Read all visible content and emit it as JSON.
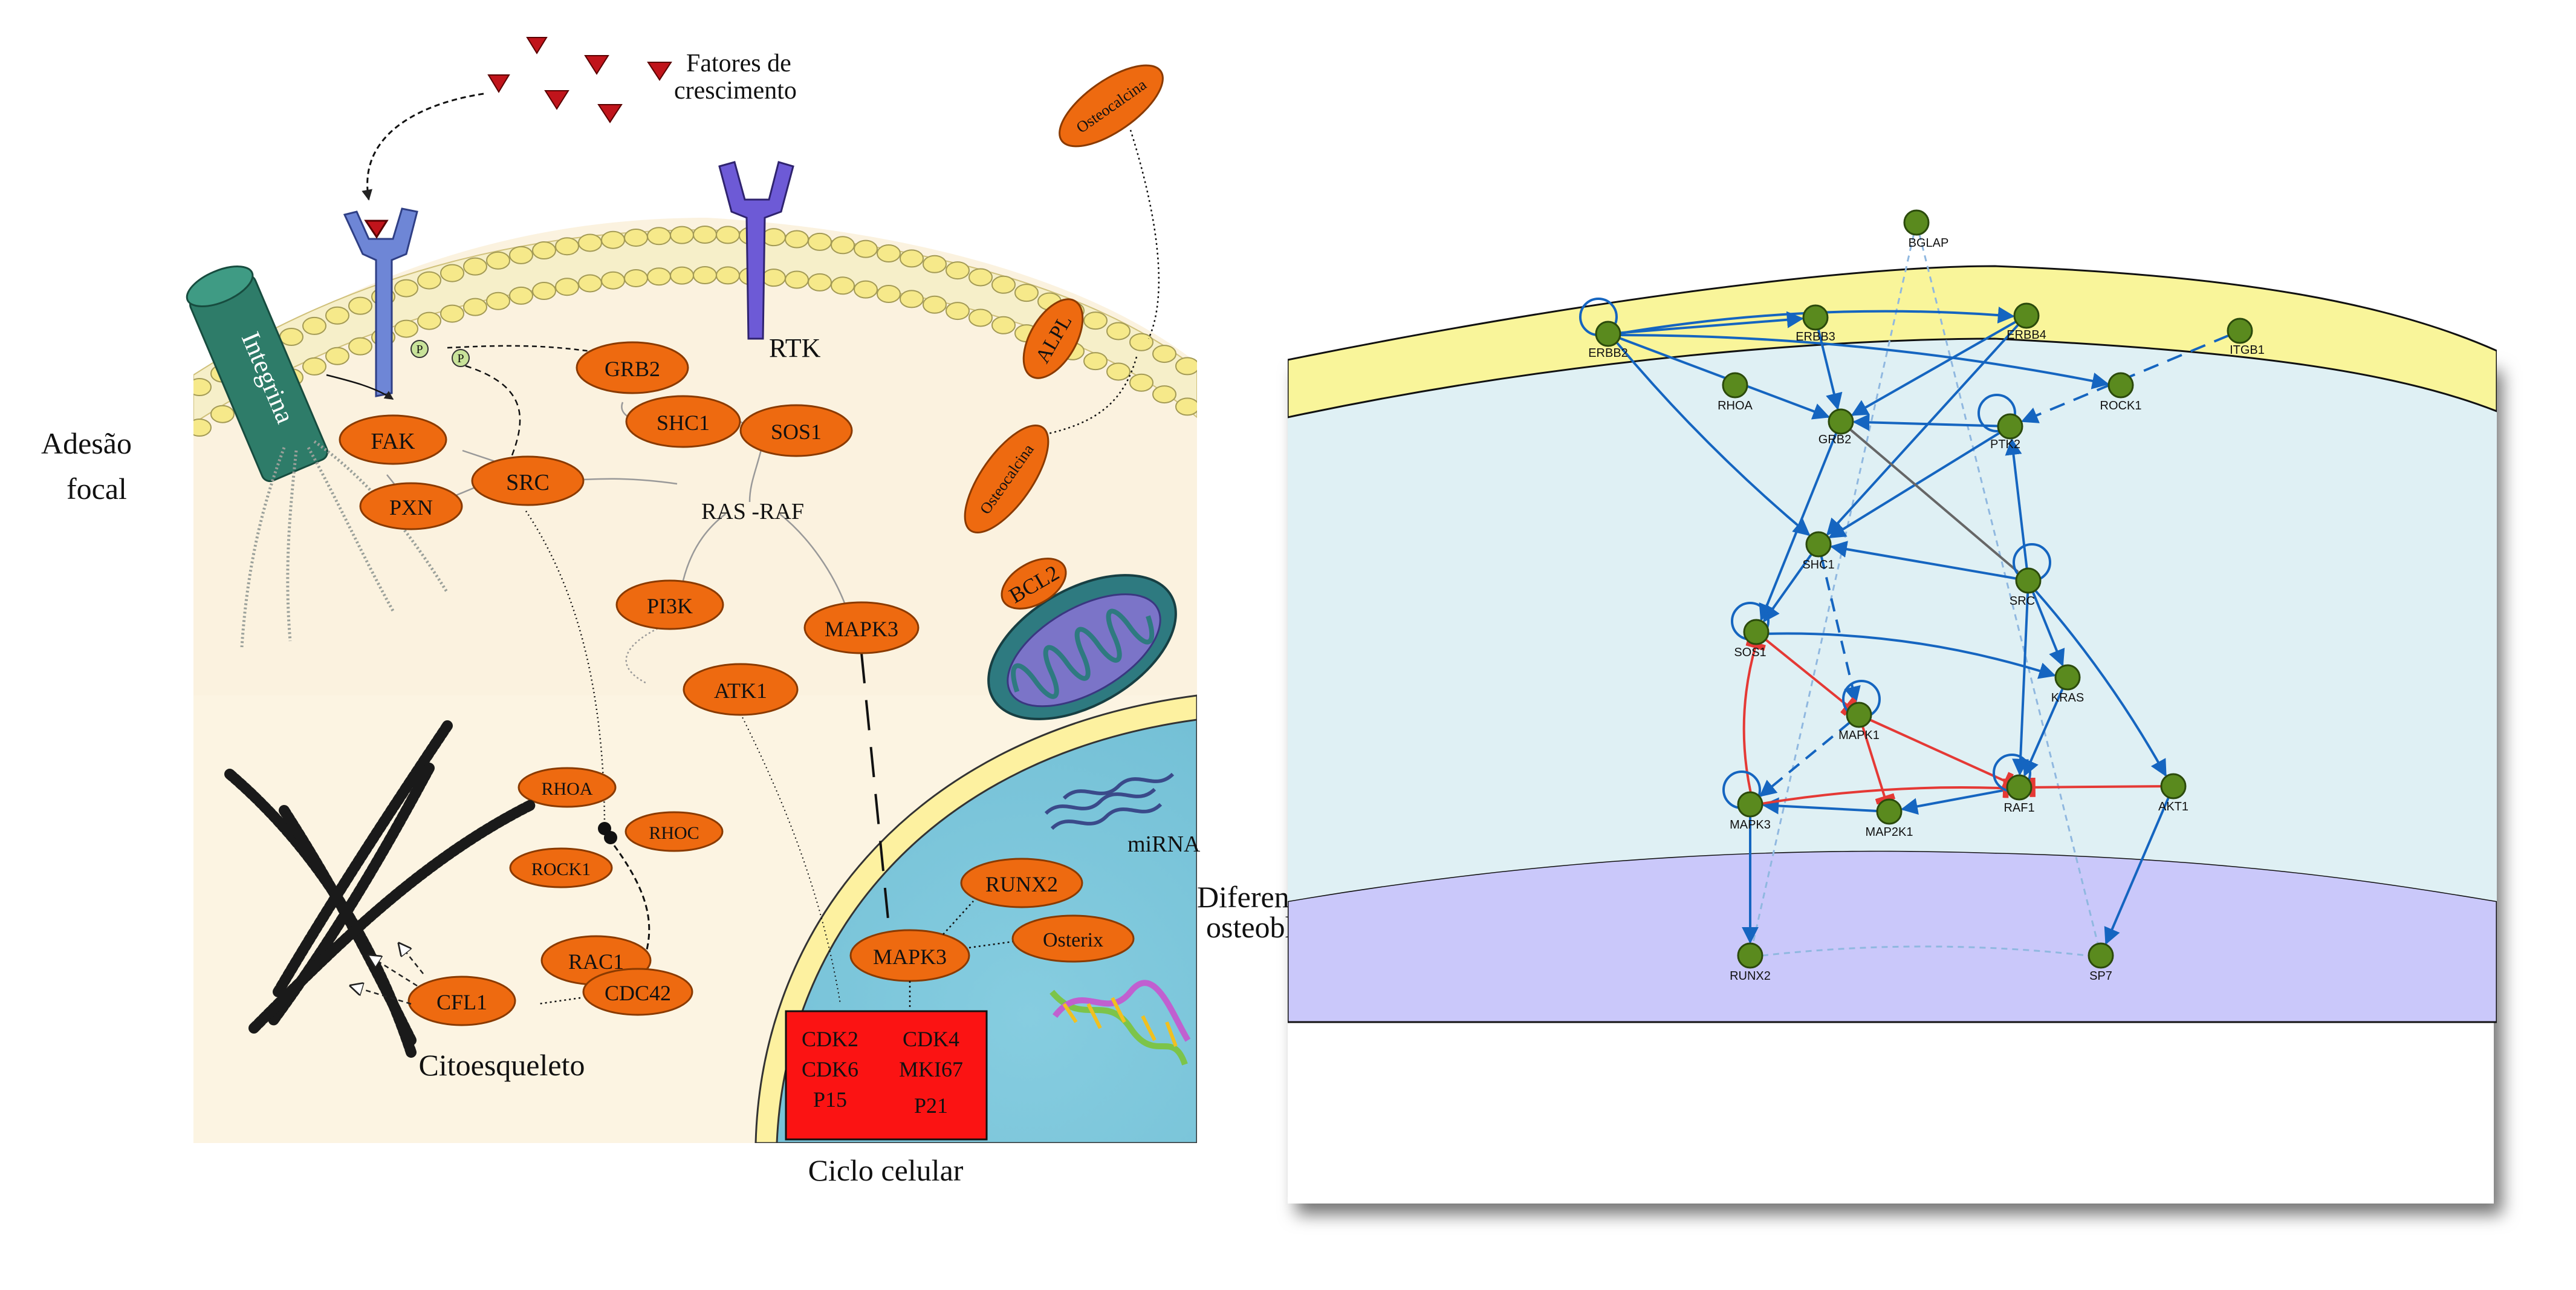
{
  "left_panel": {
    "growth_factors_label": [
      "Fatores de",
      "crescimento"
    ],
    "integrin": "Integrina",
    "rtk": "RTK",
    "focal_adhesion": [
      "Adesão",
      "focal"
    ],
    "cytoskeleton": "Citoesqueleto",
    "osteoblast_diff": [
      "Diferenciação",
      "osteoblástica"
    ],
    "cell_cycle": "Ciclo celular",
    "mirna": "miRNA",
    "ras_raf": "RAS -RAF",
    "phospho": [
      "P",
      "P"
    ],
    "nodes": [
      "FAK",
      "PXN",
      "SRC",
      "GRB2",
      "SHC1",
      "SOS1",
      "PI3K",
      "ATK1",
      "MAPK3",
      "RHOA",
      "RHOC",
      "ROCK1",
      "RAC1",
      "CDC42",
      "CFL1",
      "RUNX2",
      "Osterix",
      "MAPK3",
      "Osteocalcina",
      "Osteocalcina",
      "ALPL",
      "BCL2"
    ],
    "cell_cycle_box": [
      "CDK2",
      "CDK4",
      "CDK6",
      "MKI67",
      "P15",
      "P21"
    ]
  },
  "network": {
    "nodes": [
      "BGLAP",
      "ERBB2",
      "ERBB3",
      "ERBB4",
      "ITGB1",
      "RHOA",
      "GRB2",
      "PTK2",
      "ROCK1",
      "SHC1",
      "SRC",
      "SOS1",
      "KRAS",
      "MAPK1",
      "MAPK3",
      "MAP2K1",
      "RAF1",
      "AKT1",
      "RUNX2",
      "SP7"
    ],
    "colors": {
      "node": "#5a8a1e",
      "activation": "#1565c0",
      "inhibition": "#e53935",
      "neutral": "#666666",
      "dashed_light": "#90b8e0",
      "membrane": "#f9f59a",
      "cytoplasm": "#dff0f4",
      "nucleus": "#cac8fa"
    }
  }
}
